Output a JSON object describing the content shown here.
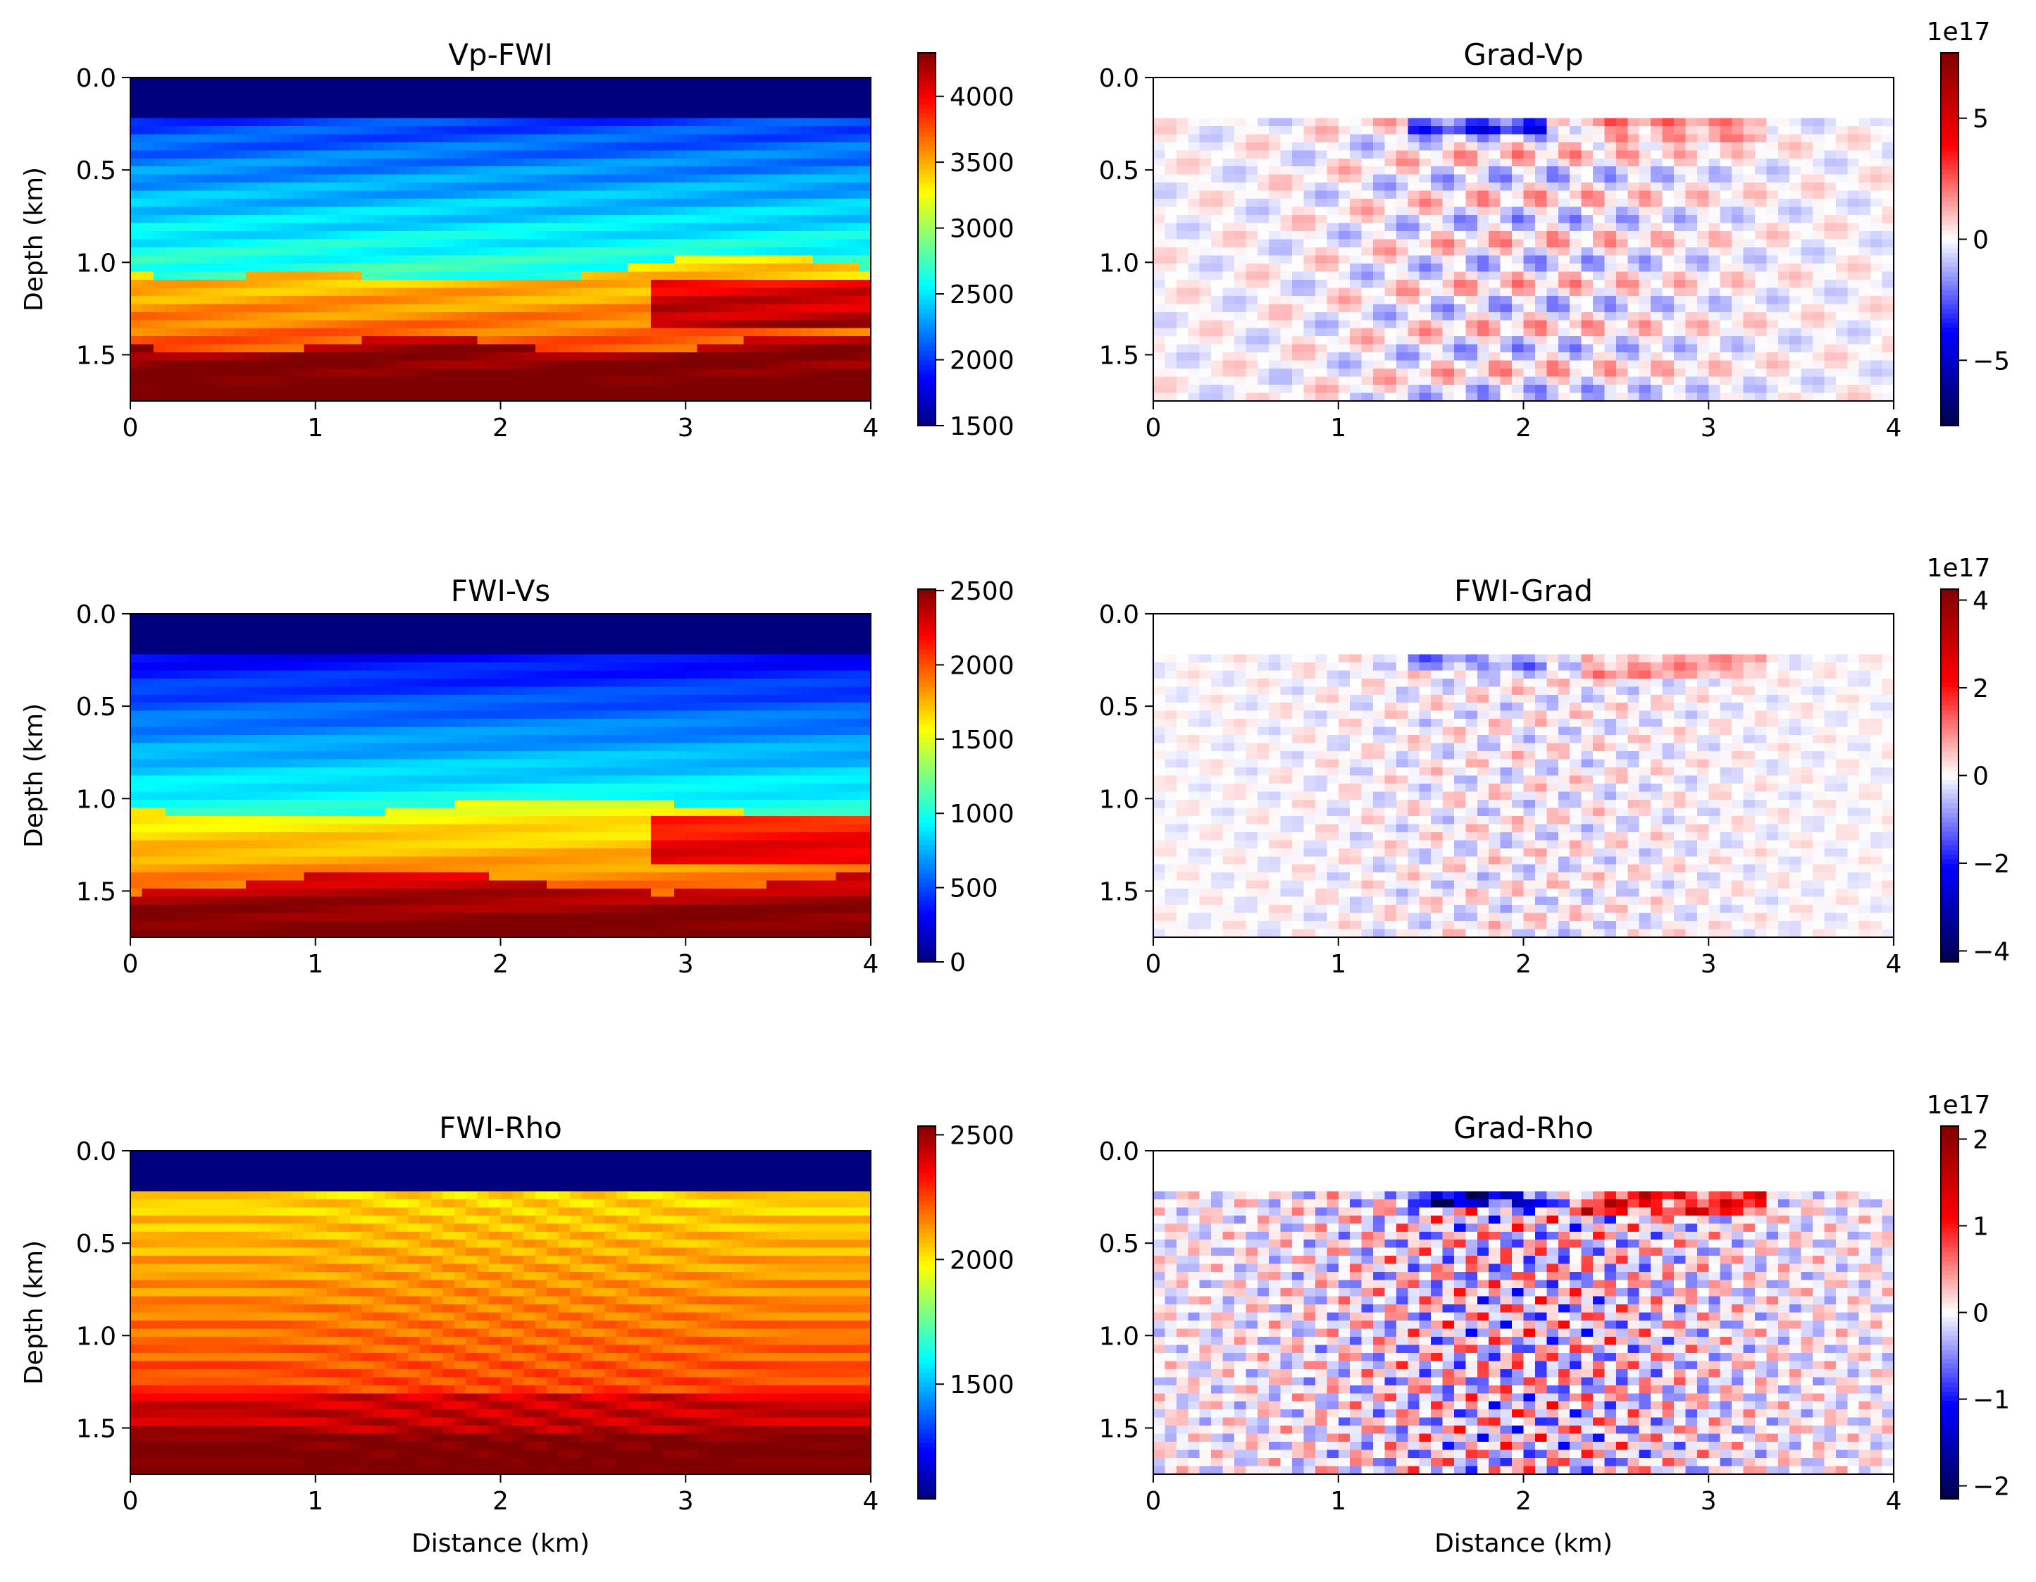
{
  "figure": {
    "colormaps": {
      "jet": [
        "#00007f",
        "#0000ff",
        "#007fff",
        "#00ffff",
        "#7fff7f",
        "#ffff00",
        "#ff7f00",
        "#ff0000",
        "#7f0000"
      ],
      "seismic": [
        "#00004c",
        "#0000ff",
        "#ffffff",
        "#ff0000",
        "#7f0000"
      ]
    },
    "frame_color": "#000000",
    "background": "#ffffff"
  },
  "chart_data": [
    {
      "type": "heatmap",
      "title": "Vp-FWI",
      "xlabel": "",
      "ylabel": "Depth (km)",
      "xlim": [
        0,
        4
      ],
      "ylim": [
        1.75,
        0
      ],
      "xticks": [
        "0",
        "1",
        "2",
        "3",
        "4"
      ],
      "yticks": [
        "0.0",
        "0.5",
        "1.0",
        "1.5"
      ],
      "colormap": "jet",
      "colorbar": {
        "range": [
          1500,
          4330
        ],
        "ticks": [
          "1500",
          "2000",
          "2500",
          "3000",
          "3500",
          "4000"
        ],
        "offset": ""
      },
      "water_layer_depth": 0.22
    },
    {
      "type": "heatmap",
      "title": "Grad-Vp",
      "xlabel": "",
      "ylabel": "",
      "xlim": [
        0,
        4
      ],
      "ylim": [
        1.75,
        0
      ],
      "xticks": [
        "0",
        "1",
        "2",
        "3",
        "4"
      ],
      "yticks": [
        "0.0",
        "0.5",
        "1.0",
        "1.5"
      ],
      "colormap": "seismic",
      "colorbar": {
        "range": [
          -7.7,
          7.7
        ],
        "ticks": [
          "−5",
          "0",
          "5"
        ],
        "offset": "1e17"
      },
      "water_layer_depth": 0.22
    },
    {
      "type": "heatmap",
      "title": "FWI-Vs",
      "xlabel": "",
      "ylabel": "Depth (km)",
      "xlim": [
        0,
        4
      ],
      "ylim": [
        1.75,
        0
      ],
      "xticks": [
        "0",
        "1",
        "2",
        "3",
        "4"
      ],
      "yticks": [
        "0.0",
        "0.5",
        "1.0",
        "1.5"
      ],
      "colormap": "jet",
      "colorbar": {
        "range": [
          0,
          2510
        ],
        "ticks": [
          "0",
          "500",
          "1000",
          "1500",
          "2000",
          "2500"
        ],
        "offset": ""
      },
      "water_layer_depth": 0.22
    },
    {
      "type": "heatmap",
      "title": "FWI-Grad",
      "xlabel": "",
      "ylabel": "",
      "xlim": [
        0,
        4
      ],
      "ylim": [
        1.75,
        0
      ],
      "xticks": [
        "0",
        "1",
        "2",
        "3",
        "4"
      ],
      "yticks": [
        "0.0",
        "0.5",
        "1.0",
        "1.5"
      ],
      "colormap": "seismic",
      "colorbar": {
        "range": [
          -4.25,
          4.25
        ],
        "ticks": [
          "−4",
          "−2",
          "0",
          "2",
          "4"
        ],
        "offset": "1e17"
      },
      "water_layer_depth": 0.22
    },
    {
      "type": "heatmap",
      "title": "FWI-Rho",
      "xlabel": "Distance (km)",
      "ylabel": "Depth (km)",
      "xlim": [
        0,
        4
      ],
      "ylim": [
        1.75,
        0
      ],
      "xticks": [
        "0",
        "1",
        "2",
        "3",
        "4"
      ],
      "yticks": [
        "0.0",
        "0.5",
        "1.0",
        "1.5"
      ],
      "colormap": "jet",
      "colorbar": {
        "range": [
          1040,
          2535
        ],
        "ticks": [
          "1500",
          "2000",
          "2500"
        ],
        "offset": ""
      },
      "water_layer_depth": 0.22
    },
    {
      "type": "heatmap",
      "title": "Grad-Rho",
      "xlabel": "Distance (km)",
      "ylabel": "",
      "xlim": [
        0,
        4
      ],
      "ylim": [
        1.75,
        0
      ],
      "xticks": [
        "0",
        "1",
        "2",
        "3",
        "4"
      ],
      "yticks": [
        "0.0",
        "0.5",
        "1.0",
        "1.5"
      ],
      "colormap": "seismic",
      "colorbar": {
        "range": [
          -2.15,
          2.15
        ],
        "ticks": [
          "−2",
          "−1",
          "0",
          "1",
          "2"
        ],
        "offset": "1e17"
      },
      "water_layer_depth": 0.22
    }
  ]
}
